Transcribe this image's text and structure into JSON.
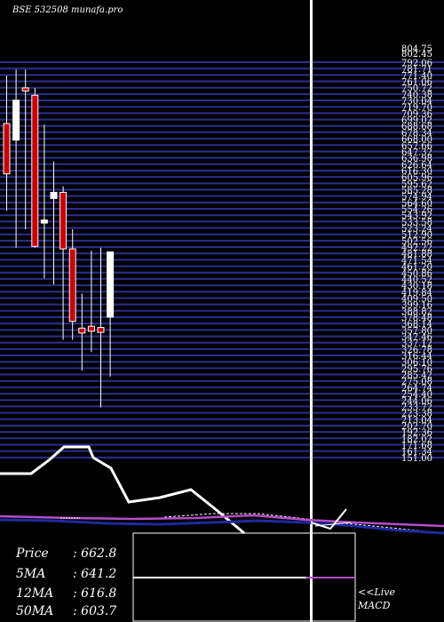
{
  "watermark": "BSE 532508  munafa.pro",
  "chart_data": {
    "type": "candlestick",
    "title": "BSE 532508",
    "price_scale": {
      "top_labels": [
        "804.75",
        "802.45"
      ],
      "labels": [
        "792.06",
        "781.71",
        "771.40",
        "761.06",
        "750.72",
        "740.38",
        "730.04",
        "719.70",
        "709.36",
        "699.02",
        "688.68",
        "678.34",
        "668.00",
        "657.66",
        "647.32",
        "636.98",
        "626.64",
        "616.30",
        "605.96",
        "595.62",
        "585.28",
        "574.94",
        "564.60",
        "554.26",
        "543.92",
        "533.58",
        "523.24",
        "512.90",
        "502.56",
        "492.22",
        "481.88",
        "471.54",
        "461.20",
        "450.86",
        "440.52",
        "430.18",
        "419.84",
        "409.50",
        "399.16",
        "388.82",
        "378.48",
        "368.14",
        "357.80",
        "347.46",
        "337.12",
        "326.78",
        "316.44",
        "306.10",
        "295.76",
        "285.42",
        "275.08",
        "264.74",
        "254.40",
        "244.06",
        "233.72",
        "223.38",
        "213.04",
        "202.70",
        "192.36",
        "182.02",
        "171.68",
        "161.34",
        "151.00"
      ],
      "max": 804.75,
      "min": 151.0
    },
    "candles": [
      {
        "o": 702,
        "h": 780,
        "l": 560,
        "c": 620
      },
      {
        "o": 675,
        "h": 790,
        "l": 500,
        "c": 740
      },
      {
        "o": 760,
        "h": 790,
        "l": 530,
        "c": 755
      },
      {
        "o": 748,
        "h": 760,
        "l": 500,
        "c": 502
      },
      {
        "o": 540,
        "h": 700,
        "l": 450,
        "c": 545
      },
      {
        "o": 580,
        "h": 640,
        "l": 440,
        "c": 590
      },
      {
        "o": 590,
        "h": 600,
        "l": 350,
        "c": 498
      },
      {
        "o": 498,
        "h": 530,
        "l": 350,
        "c": 380
      },
      {
        "o": 369,
        "h": 425,
        "l": 300,
        "c": 361
      },
      {
        "o": 372,
        "h": 495,
        "l": 330,
        "c": 364
      },
      {
        "o": 370,
        "h": 500,
        "l": 240,
        "c": 362
      },
      {
        "o": 387,
        "h": 490,
        "l": 290,
        "c": 493
      }
    ],
    "indicators": {
      "price": "662.8",
      "ma5": "641.2",
      "ma12": "616.8",
      "ma50": "603.7"
    },
    "panel_labels": {
      "live": "<<Live",
      "macd": "MACD"
    }
  }
}
